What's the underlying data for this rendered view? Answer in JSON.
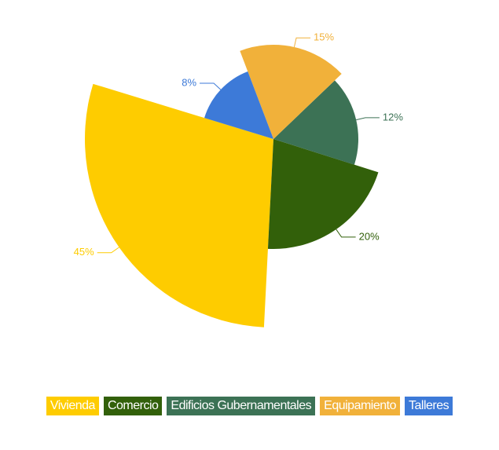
{
  "chart_data": {
    "type": "pie",
    "categories": [
      "Vivienda",
      "Comercio",
      "Edificios Gubernamentales",
      "Equipamiento",
      "Talleres"
    ],
    "values": [
      45,
      20,
      12,
      15,
      8
    ],
    "value_labels": [
      "45%",
      "20%",
      "12%",
      "15%",
      "8%"
    ],
    "colors": [
      "#fecc00",
      "#32600a",
      "#3c7255",
      "#f1b13a",
      "#3d7ad8"
    ],
    "legend": "bottom"
  }
}
